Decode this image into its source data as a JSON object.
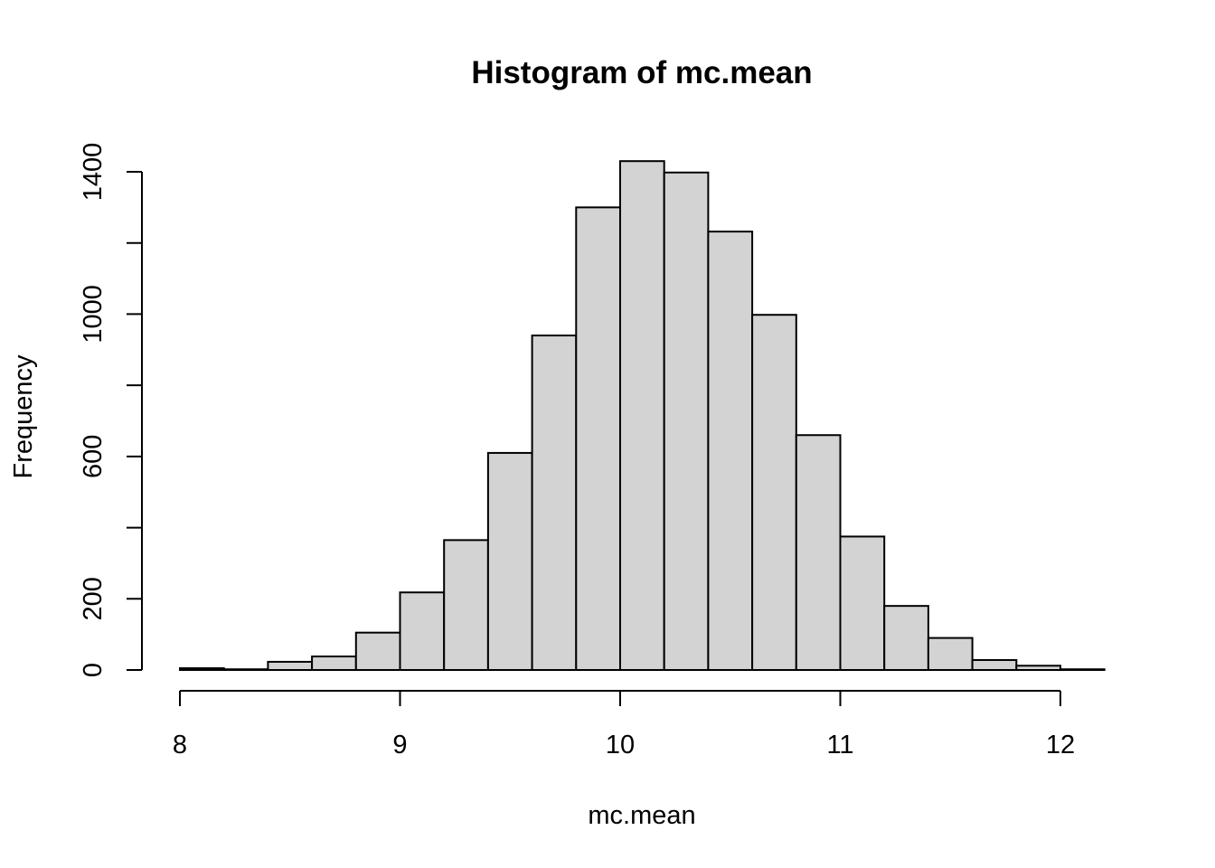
{
  "chart_data": {
    "type": "bar",
    "title": "Histogram of mc.mean",
    "xlabel": "mc.mean",
    "ylabel": "Frequency",
    "bin_edges": [
      8.0,
      8.2,
      8.4,
      8.6,
      8.8,
      9.0,
      9.2,
      9.4,
      9.6,
      9.8,
      10.0,
      10.2,
      10.4,
      10.6,
      10.8,
      11.0,
      11.2,
      11.4,
      11.6,
      11.8,
      12.0,
      12.2
    ],
    "values": [
      5,
      2,
      23,
      38,
      105,
      218,
      365,
      610,
      940,
      1300,
      1430,
      1398,
      1232,
      998,
      660,
      375,
      180,
      90,
      28,
      12,
      2
    ],
    "xlim": [
      8,
      12.2
    ],
    "ylim": [
      0,
      1430
    ],
    "x_ticks": [
      8,
      9,
      10,
      11,
      12
    ],
    "x_tick_labels": [
      "8",
      "9",
      "10",
      "11",
      "12"
    ],
    "y_ticks": [
      0,
      200,
      400,
      600,
      800,
      1000,
      1200,
      1400
    ],
    "y_tick_labels": [
      "0",
      "200",
      "",
      "600",
      "",
      "1000",
      "",
      "1400"
    ],
    "bar_color": "#d3d3d3",
    "edge_color": "#000000",
    "grid": false,
    "legend": "none"
  }
}
